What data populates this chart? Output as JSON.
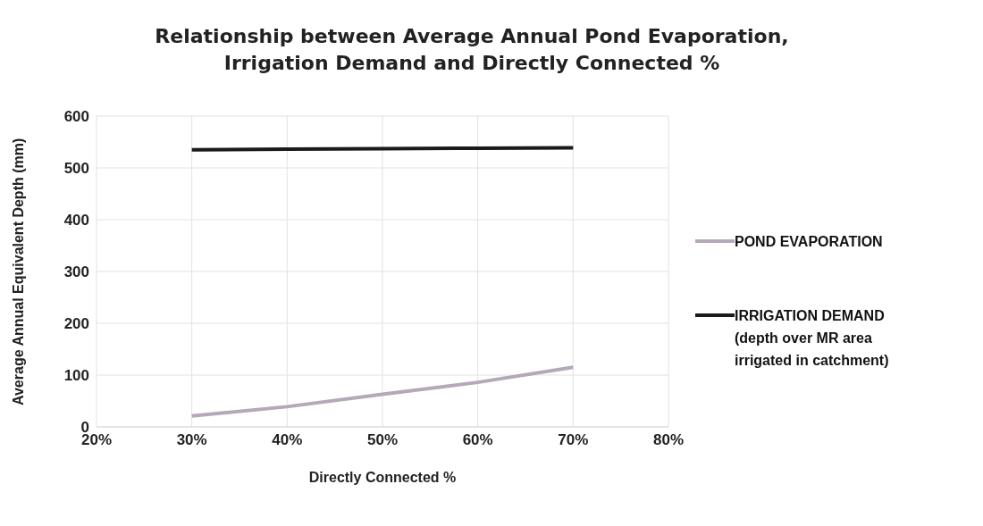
{
  "chart_data": {
    "type": "line",
    "title": "Relationship between Average Annual Pond Evaporation, Irrigation Demand and Directly Connected %",
    "xlabel": "Directly Connected %",
    "ylabel": "Average Annual Equivalent Depth (mm)",
    "x": [
      30,
      40,
      50,
      60,
      70
    ],
    "series": [
      {
        "name": "POND EVAPORATION",
        "color": "#b4a9b8",
        "values": [
          21,
          39,
          63,
          86,
          115
        ]
      },
      {
        "name": "IRRIGATION DEMAND (depth over MR area irrigated in catchment)",
        "color": "#1a1a1a",
        "values": [
          535,
          536,
          537,
          538,
          539
        ]
      }
    ],
    "xlim": [
      20,
      80
    ],
    "xticks": [
      {
        "value": 20,
        "label": "20%"
      },
      {
        "value": 30,
        "label": "30%"
      },
      {
        "value": 40,
        "label": "40%"
      },
      {
        "value": 50,
        "label": "50%"
      },
      {
        "value": 60,
        "label": "60%"
      },
      {
        "value": 70,
        "label": "70%"
      },
      {
        "value": 80,
        "label": "80%"
      }
    ],
    "ylim": [
      0,
      600
    ],
    "yticks": [
      0,
      100,
      200,
      300,
      400,
      500,
      600
    ],
    "grid": true,
    "legend": "right",
    "marker": "none",
    "line_style": "solid"
  }
}
